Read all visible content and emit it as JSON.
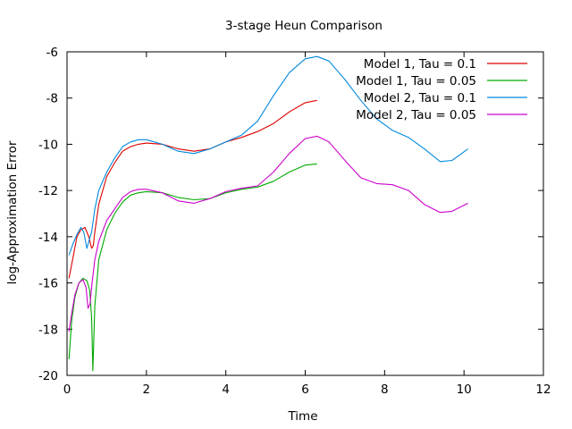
{
  "chart_data": {
    "type": "line",
    "title": "3-stage Heun Comparison",
    "xlabel": "Time",
    "ylabel": "log-Approximation Error",
    "xlim": [
      0,
      12
    ],
    "ylim": [
      -20,
      -6
    ],
    "xticks": [
      0,
      2,
      4,
      6,
      8,
      10,
      12
    ],
    "yticks": [
      -20,
      -18,
      -16,
      -14,
      -12,
      -10,
      -8,
      -6
    ],
    "grid": false,
    "legend_position": "top-right",
    "series": [
      {
        "name": "Model 1, Tau = 0.1",
        "color": "#dd0000",
        "points": [
          [
            0.05,
            -15.8
          ],
          [
            0.15,
            -14.9
          ],
          [
            0.25,
            -14.0
          ],
          [
            0.35,
            -13.7
          ],
          [
            0.45,
            -13.6
          ],
          [
            0.55,
            -14.0
          ],
          [
            0.62,
            -14.5
          ],
          [
            0.66,
            -14.4
          ],
          [
            0.7,
            -13.8
          ],
          [
            0.8,
            -12.6
          ],
          [
            1.0,
            -11.4
          ],
          [
            1.2,
            -10.8
          ],
          [
            1.4,
            -10.3
          ],
          [
            1.6,
            -10.1
          ],
          [
            1.8,
            -10.0
          ],
          [
            2.0,
            -9.95
          ],
          [
            2.4,
            -10.0
          ],
          [
            2.8,
            -10.2
          ],
          [
            3.2,
            -10.3
          ],
          [
            3.6,
            -10.2
          ],
          [
            4.0,
            -9.9
          ],
          [
            4.4,
            -9.7
          ],
          [
            4.8,
            -9.45
          ],
          [
            5.2,
            -9.1
          ],
          [
            5.6,
            -8.6
          ],
          [
            6.0,
            -8.2
          ],
          [
            6.3,
            -8.1
          ]
        ]
      },
      {
        "name": "Model 1, Tau = 0.05",
        "color": "#00aa00",
        "points": [
          [
            0.05,
            -19.3
          ],
          [
            0.12,
            -17.6
          ],
          [
            0.2,
            -16.6
          ],
          [
            0.3,
            -16.0
          ],
          [
            0.4,
            -15.8
          ],
          [
            0.5,
            -15.9
          ],
          [
            0.57,
            -16.3
          ],
          [
            0.62,
            -17.5
          ],
          [
            0.65,
            -19.8
          ],
          [
            0.7,
            -17.0
          ],
          [
            0.8,
            -15.0
          ],
          [
            1.0,
            -13.7
          ],
          [
            1.2,
            -13.0
          ],
          [
            1.4,
            -12.5
          ],
          [
            1.6,
            -12.2
          ],
          [
            1.8,
            -12.1
          ],
          [
            2.0,
            -12.05
          ],
          [
            2.4,
            -12.1
          ],
          [
            2.8,
            -12.3
          ],
          [
            3.2,
            -12.4
          ],
          [
            3.6,
            -12.35
          ],
          [
            4.0,
            -12.1
          ],
          [
            4.4,
            -11.95
          ],
          [
            4.8,
            -11.85
          ],
          [
            5.2,
            -11.6
          ],
          [
            5.6,
            -11.2
          ],
          [
            6.0,
            -10.9
          ],
          [
            6.3,
            -10.85
          ]
        ]
      },
      {
        "name": "Model 2, Tau = 0.1",
        "color": "#0088dd",
        "points": [
          [
            0.05,
            -14.8
          ],
          [
            0.15,
            -14.3
          ],
          [
            0.25,
            -13.9
          ],
          [
            0.35,
            -13.6
          ],
          [
            0.42,
            -13.8
          ],
          [
            0.5,
            -14.5
          ],
          [
            0.55,
            -14.2
          ],
          [
            0.62,
            -13.8
          ],
          [
            0.7,
            -12.8
          ],
          [
            0.8,
            -12.0
          ],
          [
            1.0,
            -11.2
          ],
          [
            1.2,
            -10.6
          ],
          [
            1.4,
            -10.1
          ],
          [
            1.6,
            -9.9
          ],
          [
            1.8,
            -9.8
          ],
          [
            2.0,
            -9.8
          ],
          [
            2.4,
            -10.0
          ],
          [
            2.8,
            -10.3
          ],
          [
            3.2,
            -10.4
          ],
          [
            3.6,
            -10.2
          ],
          [
            4.0,
            -9.9
          ],
          [
            4.4,
            -9.6
          ],
          [
            4.8,
            -9.0
          ],
          [
            5.2,
            -7.9
          ],
          [
            5.6,
            -6.9
          ],
          [
            6.0,
            -6.3
          ],
          [
            6.3,
            -6.2
          ],
          [
            6.6,
            -6.4
          ],
          [
            7.0,
            -7.2
          ],
          [
            7.4,
            -8.1
          ],
          [
            7.8,
            -8.9
          ],
          [
            8.2,
            -9.4
          ],
          [
            8.6,
            -9.7
          ],
          [
            9.0,
            -10.2
          ],
          [
            9.4,
            -10.75
          ],
          [
            9.7,
            -10.7
          ],
          [
            10.1,
            -10.2
          ]
        ]
      },
      {
        "name": "Model 2, Tau = 0.05",
        "color": "#cc00cc",
        "points": [
          [
            0.05,
            -18.1
          ],
          [
            0.12,
            -17.3
          ],
          [
            0.2,
            -16.5
          ],
          [
            0.3,
            -16.0
          ],
          [
            0.4,
            -15.85
          ],
          [
            0.48,
            -16.2
          ],
          [
            0.53,
            -17.1
          ],
          [
            0.58,
            -16.9
          ],
          [
            0.63,
            -16.0
          ],
          [
            0.7,
            -15.0
          ],
          [
            0.8,
            -14.2
          ],
          [
            1.0,
            -13.3
          ],
          [
            1.2,
            -12.8
          ],
          [
            1.4,
            -12.3
          ],
          [
            1.6,
            -12.05
          ],
          [
            1.8,
            -11.95
          ],
          [
            2.0,
            -11.95
          ],
          [
            2.4,
            -12.1
          ],
          [
            2.8,
            -12.45
          ],
          [
            3.2,
            -12.55
          ],
          [
            3.6,
            -12.35
          ],
          [
            4.0,
            -12.05
          ],
          [
            4.4,
            -11.9
          ],
          [
            4.8,
            -11.8
          ],
          [
            5.2,
            -11.2
          ],
          [
            5.6,
            -10.4
          ],
          [
            6.0,
            -9.75
          ],
          [
            6.3,
            -9.65
          ],
          [
            6.6,
            -9.9
          ],
          [
            7.0,
            -10.7
          ],
          [
            7.4,
            -11.45
          ],
          [
            7.8,
            -11.7
          ],
          [
            8.2,
            -11.75
          ],
          [
            8.6,
            -12.0
          ],
          [
            9.0,
            -12.6
          ],
          [
            9.4,
            -12.95
          ],
          [
            9.7,
            -12.9
          ],
          [
            10.1,
            -12.55
          ]
        ]
      }
    ]
  }
}
